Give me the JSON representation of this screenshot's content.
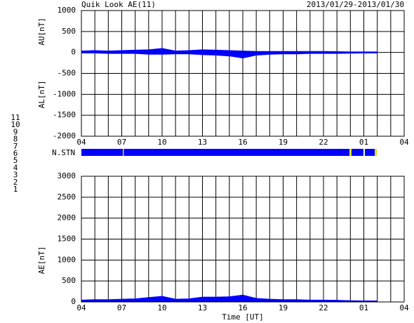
{
  "title": "Quik Look AE(11)",
  "date_range": "2013/01/29-2013/01/30",
  "station_label": "N.STN",
  "station_counts": [
    {
      "label": "11",
      "color": "#00e0e0"
    },
    {
      "label": "10",
      "color": "#e000e0"
    },
    {
      "label": "9",
      "color": "#2020ff"
    },
    {
      "label": "8",
      "color": "#e0e000"
    },
    {
      "label": "7",
      "color": "#00c000"
    },
    {
      "label": "6",
      "color": "#e00000"
    },
    {
      "label": "5",
      "color": "#c8c8c8"
    },
    {
      "label": "4",
      "color": "#909090"
    },
    {
      "label": "3",
      "color": "#008080"
    },
    {
      "label": "2",
      "color": "#800080"
    },
    {
      "label": "1",
      "color": "#0000c0"
    }
  ],
  "chart_data": [
    {
      "type": "area",
      "ylabels": [
        "AU[nT]",
        "AL[nT]"
      ],
      "ylim": [
        -2000,
        1000
      ],
      "yticks": [
        1000,
        500,
        0,
        -500,
        -1000,
        -1500,
        -2000
      ],
      "xlim": [
        0,
        24
      ],
      "xticks": [
        {
          "value": 0,
          "label": "04"
        },
        {
          "value": 3,
          "label": "07"
        },
        {
          "value": 6,
          "label": "10"
        },
        {
          "value": 9,
          "label": "13"
        },
        {
          "value": 12,
          "label": "16"
        },
        {
          "value": 15,
          "label": "19"
        },
        {
          "value": 18,
          "label": "22"
        },
        {
          "value": 21,
          "label": "01"
        },
        {
          "value": 24,
          "label": "04"
        }
      ],
      "xgrid": [
        0,
        1,
        2,
        3,
        4,
        5,
        6,
        7,
        8,
        9,
        10,
        11,
        12,
        13,
        14,
        15,
        16,
        17,
        18,
        19,
        20,
        21,
        22,
        23,
        24
      ],
      "x": [
        0,
        1,
        2,
        3,
        4,
        5,
        6,
        7,
        8,
        9,
        10,
        11,
        12,
        13,
        14,
        15,
        16,
        17,
        18,
        19,
        20,
        21,
        22
      ],
      "series": [
        {
          "color": "#0000ff",
          "values": [
            30,
            40,
            30,
            40,
            50,
            60,
            90,
            30,
            40,
            60,
            50,
            40,
            30,
            20,
            20,
            20,
            20,
            20,
            20,
            15,
            10,
            10,
            10
          ]
        },
        {
          "color": "#0000ff",
          "values": [
            -10,
            -10,
            -20,
            -20,
            -20,
            -40,
            -40,
            -30,
            -30,
            -50,
            -60,
            -80,
            -130,
            -60,
            -40,
            -30,
            -30,
            -20,
            -20,
            -20,
            -15,
            -10,
            -10
          ]
        }
      ]
    },
    {
      "type": "area",
      "ylabels": [
        "AE[nT]"
      ],
      "xlabel": "Time [UT]",
      "ylim": [
        0,
        3000
      ],
      "yticks": [
        3000,
        2500,
        2000,
        1500,
        1000,
        500,
        0
      ],
      "xlim": [
        0,
        24
      ],
      "xticks": [
        {
          "value": 0,
          "label": "04"
        },
        {
          "value": 3,
          "label": "07"
        },
        {
          "value": 6,
          "label": "10"
        },
        {
          "value": 9,
          "label": "13"
        },
        {
          "value": 12,
          "label": "16"
        },
        {
          "value": 15,
          "label": "19"
        },
        {
          "value": 18,
          "label": "22"
        },
        {
          "value": 21,
          "label": "01"
        },
        {
          "value": 24,
          "label": "04"
        }
      ],
      "xgrid": [
        0,
        1,
        2,
        3,
        4,
        5,
        6,
        7,
        8,
        9,
        10,
        11,
        12,
        13,
        14,
        15,
        16,
        17,
        18,
        19,
        20,
        21,
        22,
        23,
        24
      ],
      "x": [
        0,
        1,
        2,
        3,
        4,
        5,
        6,
        7,
        8,
        9,
        10,
        11,
        12,
        13,
        14,
        15,
        16,
        17,
        18,
        19,
        20,
        21,
        22
      ],
      "series": [
        {
          "color": "#0000ff",
          "values": [
            40,
            50,
            50,
            60,
            70,
            100,
            130,
            60,
            70,
            110,
            110,
            120,
            160,
            80,
            60,
            50,
            50,
            40,
            40,
            35,
            25,
            20,
            20
          ]
        }
      ]
    }
  ]
}
